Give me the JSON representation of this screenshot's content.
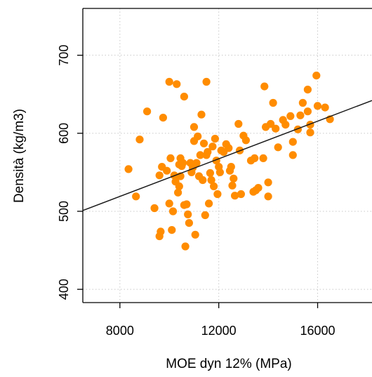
{
  "chart_data": {
    "type": "scatter",
    "xlabel": "MOE dyn 12% (MPa)",
    "ylabel": "Densità (kg/m3)",
    "xlim": [
      6500,
      18200
    ],
    "ylim": [
      383,
      760
    ],
    "x_ticks": [
      8000,
      12000,
      16000
    ],
    "x_tick_labels": [
      "8000",
      "12000",
      "16000"
    ],
    "y_ticks": [
      400,
      500,
      600,
      700
    ],
    "y_tick_labels": [
      "400",
      "500",
      "600",
      "700"
    ],
    "grid": true,
    "point_color": "#ff8c00",
    "regression_line": {
      "x": [
        6500,
        18200
      ],
      "y": [
        501,
        642
      ]
    },
    "series": [
      {
        "values_xy": [
          [
            8350,
            554
          ],
          [
            8650,
            519
          ],
          [
            8800,
            592
          ],
          [
            9100,
            628
          ],
          [
            9400,
            504
          ],
          [
            9600,
            468
          ],
          [
            9650,
            474
          ],
          [
            9700,
            557
          ],
          [
            9750,
            620
          ],
          [
            9600,
            546
          ],
          [
            9900,
            552
          ],
          [
            10000,
            666
          ],
          [
            10000,
            510
          ],
          [
            10050,
            568
          ],
          [
            10100,
            476
          ],
          [
            10150,
            500
          ],
          [
            10250,
            538
          ],
          [
            10200,
            546
          ],
          [
            10300,
            663
          ],
          [
            10350,
            524
          ],
          [
            10400,
            532
          ],
          [
            10450,
            545
          ],
          [
            10500,
            558
          ],
          [
            10450,
            568
          ],
          [
            10400,
            560
          ],
          [
            10550,
            562
          ],
          [
            10600,
            647
          ],
          [
            10600,
            508
          ],
          [
            10650,
            455
          ],
          [
            10700,
            509
          ],
          [
            10750,
            496
          ],
          [
            10800,
            485
          ],
          [
            10850,
            562
          ],
          [
            10900,
            550
          ],
          [
            10950,
            556
          ],
          [
            11000,
            608
          ],
          [
            11000,
            590
          ],
          [
            11050,
            470
          ],
          [
            11100,
            562
          ],
          [
            11150,
            596
          ],
          [
            11200,
            545
          ],
          [
            11250,
            572
          ],
          [
            11300,
            624
          ],
          [
            11350,
            540
          ],
          [
            11400,
            587
          ],
          [
            11450,
            495
          ],
          [
            11500,
            666
          ],
          [
            11500,
            572
          ],
          [
            11550,
            576
          ],
          [
            11600,
            510
          ],
          [
            11650,
            549
          ],
          [
            11700,
            540
          ],
          [
            11750,
            583
          ],
          [
            11800,
            532
          ],
          [
            11850,
            593
          ],
          [
            11900,
            565
          ],
          [
            11950,
            522
          ],
          [
            12000,
            557
          ],
          [
            12050,
            550
          ],
          [
            12100,
            578
          ],
          [
            12200,
            576
          ],
          [
            12300,
            586
          ],
          [
            12400,
            581
          ],
          [
            12450,
            552
          ],
          [
            12500,
            557
          ],
          [
            12550,
            533
          ],
          [
            12600,
            542
          ],
          [
            12650,
            520
          ],
          [
            12800,
            612
          ],
          [
            12850,
            578
          ],
          [
            12900,
            522
          ],
          [
            13000,
            597
          ],
          [
            13100,
            591
          ],
          [
            13300,
            565
          ],
          [
            13400,
            525
          ],
          [
            13450,
            568
          ],
          [
            13500,
            527
          ],
          [
            13600,
            530
          ],
          [
            13800,
            568
          ],
          [
            13850,
            660
          ],
          [
            13900,
            608
          ],
          [
            14000,
            519
          ],
          [
            14000,
            537
          ],
          [
            14100,
            612
          ],
          [
            14200,
            639
          ],
          [
            14300,
            606
          ],
          [
            14400,
            582
          ],
          [
            14600,
            617
          ],
          [
            14700,
            611
          ],
          [
            14900,
            622
          ],
          [
            15000,
            572
          ],
          [
            15000,
            589
          ],
          [
            15200,
            605
          ],
          [
            15300,
            623
          ],
          [
            15400,
            639
          ],
          [
            15600,
            656
          ],
          [
            15600,
            628
          ],
          [
            15700,
            611
          ],
          [
            15700,
            601
          ],
          [
            15950,
            674
          ],
          [
            16000,
            635
          ],
          [
            16300,
            633
          ],
          [
            16500,
            618
          ]
        ]
      }
    ]
  }
}
